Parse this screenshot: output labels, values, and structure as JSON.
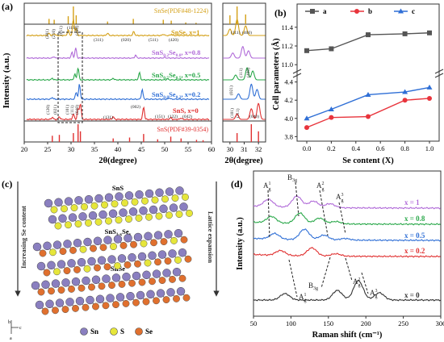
{
  "panel_a": {
    "label": "(a)",
    "ylabel": "Intensity (a.u.)",
    "xlabel": "2θ(degree)",
    "x_ticks": [
      "20",
      "25",
      "30",
      "35",
      "40",
      "45",
      "50",
      "55",
      "60"
    ],
    "ref_top": "SnSe(PDF#48-1224)",
    "ref_bottom": "SnS(PDF#39-0354)",
    "curves": [
      {
        "name": "SnSe, x=1",
        "color": "#d4a017"
      },
      {
        "name": "SnS0.2Se0.8, x=0.8",
        "color": "#b06ad8"
      },
      {
        "name": "SnS0.5Se0.5, x=0.5",
        "color": "#2aa84a"
      },
      {
        "name": "SnS0.8Se0.2, x=0.2",
        "color": "#2f6fd6"
      },
      {
        "name": "SnS, x=0",
        "color": "#e03030"
      }
    ],
    "label_texts": {
      "snse": "SnSe, x=1",
      "x08_a": "SnS",
      "x08_s1": "0.2",
      "x08_b": "Se",
      "x08_s2": "0.8",
      "x08_c": ", x=0.8",
      "x05_a": "SnS",
      "x05_s1": "0.5",
      "x05_b": "Se",
      "x05_s2": "0.5",
      "x05_c": ", x=0.5",
      "x02_a": "SnS",
      "x02_s1": "0.8",
      "x02_b": "Se",
      "x02_s2": "0.2",
      "x02_c": ", x=0.2",
      "sns": "SnS, x=0"
    },
    "snse_hkl": [
      "(201)",
      "(210)",
      "(011)",
      "(111)",
      "(400)",
      "(311)",
      "(020)",
      "(511)",
      "(420)"
    ],
    "sns_hkl": [
      "(120)",
      "(021)",
      "(101)",
      "(111)",
      "(040)",
      "(131)",
      "(002)",
      "(151)",
      "(122)",
      "(042)"
    ],
    "zoom_x_ticks": [
      "30",
      "31",
      "32"
    ],
    "zoom_hkl": [
      "(111)",
      "(400)",
      "(111)",
      "(400)",
      "(021)",
      "(111)",
      "(040)",
      "(101)"
    ]
  },
  "panel_b": {
    "label": "(b)",
    "ylabel": "Cell parameters (Å)",
    "xlabel": "Se content (X)",
    "legend": [
      "a",
      "b",
      "c"
    ],
    "chart_data": {
      "type": "line",
      "x": [
        0,
        0.2,
        0.5,
        0.8,
        1.0
      ],
      "series": [
        {
          "name": "a",
          "color": "#555555",
          "values": [
            11.15,
            11.17,
            11.32,
            11.33,
            11.34
          ]
        },
        {
          "name": "b",
          "color": "#e8343c",
          "values": [
            3.9,
            4.01,
            4.02,
            4.2,
            4.22
          ]
        },
        {
          "name": "c",
          "color": "#2f6fd6",
          "values": [
            4.0,
            4.1,
            4.26,
            4.29,
            4.34
          ]
        }
      ],
      "x_ticks": [
        "0.0",
        "0.2",
        "0.4",
        "0.6",
        "0.8",
        "1.0"
      ],
      "upper_ticks": [
        "11.0",
        "11.2",
        "11.4"
      ],
      "lower_ticks": [
        "3.8",
        "4.0",
        "4.2",
        "4.4"
      ]
    }
  },
  "panel_c": {
    "label": "(c)",
    "t_sns": "SnS",
    "t_mid_a": "SnS",
    "t_mid_s1": "1-x",
    "t_mid_b": "Se",
    "t_mid_s2": "x",
    "t_snse": "SnSe",
    "left_arrow": "Increasing Se content",
    "right_arrow": "Lattice expansion",
    "legend": [
      "Sn",
      "S",
      "Se"
    ],
    "axes": [
      "b",
      "c",
      "a"
    ]
  },
  "panel_d": {
    "label": "(d)",
    "ylabel": "Intensity (a.u.)",
    "xlabel": "Raman shift (cm⁻¹)",
    "x_ticks": [
      "50",
      "100",
      "150",
      "200",
      "250",
      "300"
    ],
    "curves": [
      {
        "name": "x = 1",
        "color": "#b06ad8"
      },
      {
        "name": "x = 0.8",
        "color": "#2aa84a"
      },
      {
        "name": "x = 0.5",
        "color": "#2f6fd6"
      },
      {
        "name": "x = 0.2",
        "color": "#e03030"
      },
      {
        "name": "x = 0",
        "color": "#333333"
      }
    ],
    "modes_top": [
      "A",
      "1",
      "g",
      "B",
      "3g",
      "A",
      "2",
      "g",
      "A",
      "3",
      "g"
    ],
    "modes_bottom": [
      "A",
      "1",
      "g",
      "B",
      "3g",
      "A",
      "2",
      "g",
      "A",
      "3",
      "g"
    ]
  }
}
